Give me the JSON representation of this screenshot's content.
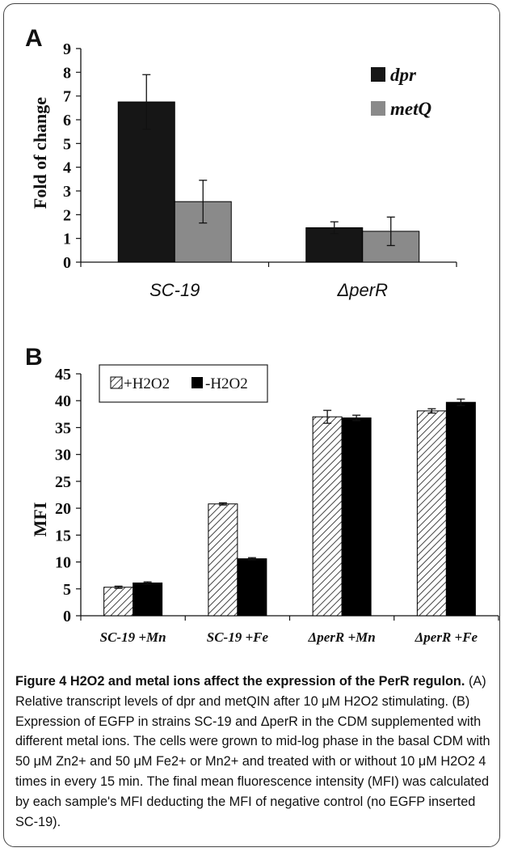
{
  "panel_a": {
    "letter": "A",
    "ylabel": "Fold of change",
    "categories": [
      "SC-19",
      "ΔperR"
    ],
    "legend": [
      "dpr",
      "metQ"
    ],
    "ylim": [
      0,
      9
    ],
    "yticks": [
      "0",
      "1",
      "2",
      "3",
      "4",
      "5",
      "6",
      "7",
      "8",
      "9"
    ]
  },
  "panel_b": {
    "letter": "B",
    "ylabel": "MFI",
    "categories": [
      "SC-19 +Mn",
      "SC-19 +Fe",
      "ΔperR +Mn",
      "ΔperR +Fe"
    ],
    "legend": [
      "+H2O2",
      "-H2O2"
    ],
    "ylim": [
      0,
      45
    ],
    "yticks": [
      "0",
      "5",
      "10",
      "15",
      "20",
      "25",
      "30",
      "35",
      "40",
      "45"
    ]
  },
  "colors": {
    "dpr": "#161616",
    "metQ": "#8a8a8a",
    "minus_h2o2": "#000000",
    "hatch": "#444444"
  },
  "chart_data": [
    {
      "type": "bar",
      "ylabel": "Fold of change",
      "categories": [
        "SC-19",
        "ΔperR"
      ],
      "series": [
        {
          "name": "dpr",
          "values": [
            6.75,
            1.45
          ],
          "errors": [
            1.15,
            0.25
          ]
        },
        {
          "name": "metQ",
          "values": [
            2.55,
            1.3
          ],
          "errors": [
            0.9,
            0.6
          ]
        }
      ],
      "ylim": [
        0,
        9
      ],
      "legend_position": "top-right",
      "grid": false
    },
    {
      "type": "bar",
      "ylabel": "MFI",
      "categories": [
        "SC-19 +Mn",
        "SC-19 +Fe",
        "ΔperR +Mn",
        "ΔperR +Fe"
      ],
      "series": [
        {
          "name": "+H2O2",
          "values": [
            5.3,
            20.8,
            37.0,
            38.1
          ],
          "errors": [
            0.2,
            0.2,
            1.2,
            0.4
          ]
        },
        {
          "name": "-H2O2",
          "values": [
            6.1,
            10.6,
            36.8,
            39.7
          ],
          "errors": [
            0.2,
            0.2,
            0.5,
            0.6
          ]
        }
      ],
      "ylim": [
        0,
        45
      ],
      "legend_position": "top-left",
      "grid": false
    }
  ],
  "caption": {
    "title": "Figure 4 H2O2 and metal ions affect the expression of the PerR regulon.",
    "body": "(A) Relative transcript levels of dpr and metQIN after 10 μM H2O2 stimulating. (B) Expression of EGFP in strains SC-19 and ΔperR in the CDM supplemented with different metal ions. The cells were grown to mid-log phase in the basal CDM with 50 μM Zn2+ and 50 μM Fe2+ or Mn2+ and treated with or without 10 μM H2O2 4 times in every 15 min. The final mean fluorescence intensity (MFI) was calculated by each sample's MFI deducting the MFI of negative control (no EGFP inserted SC-19)."
  }
}
